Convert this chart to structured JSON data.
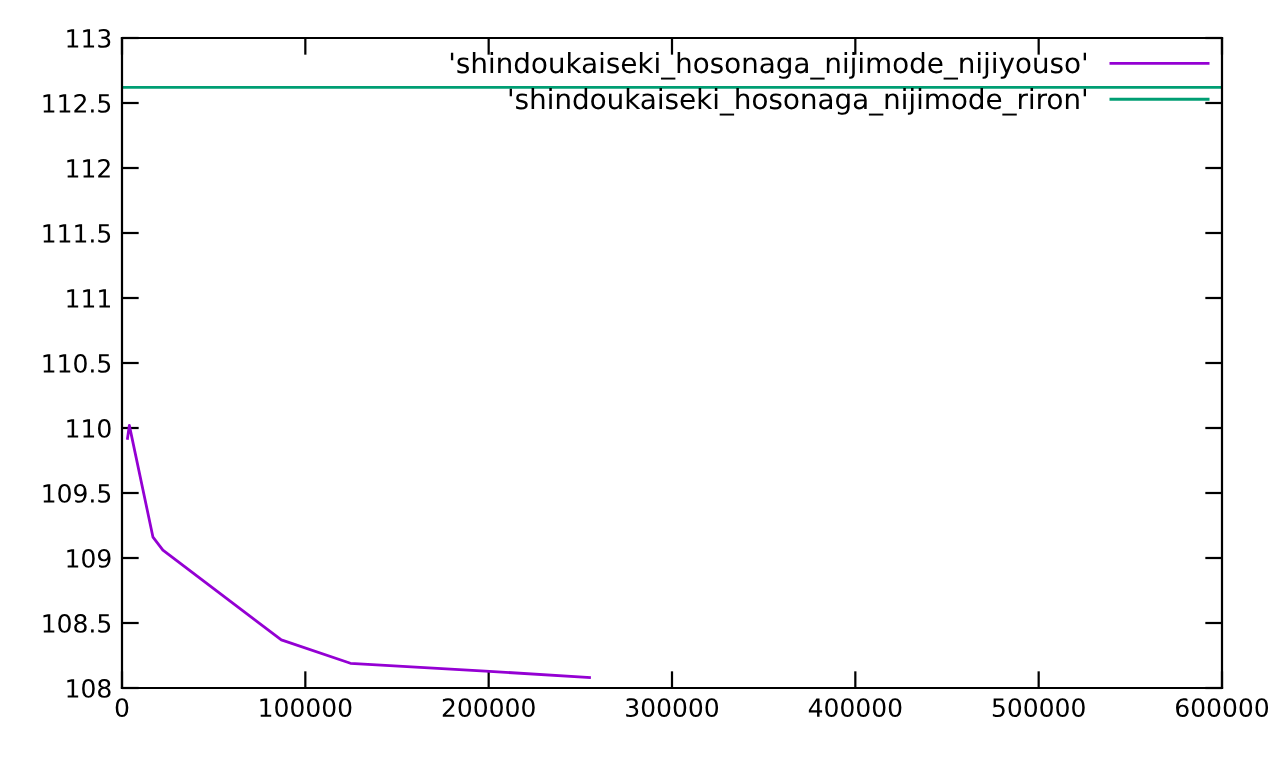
{
  "chart_data": {
    "type": "line",
    "series": [
      {
        "name": "'shindoukaiseki_hosonaga_nijimode_nijiyouso'",
        "color": "#9400d3",
        "x": [
          3000,
          4000,
          16900,
          22300,
          86900,
          124600,
          198200,
          255000
        ],
        "values": [
          109.92,
          110.02,
          109.16,
          109.06,
          108.37,
          108.19,
          108.13,
          108.08
        ]
      },
      {
        "name": "'shindoukaiseki_hosonaga_nijimode_riron'",
        "color": "#009e73",
        "x": [
          0,
          600000
        ],
        "values": [
          112.62,
          112.62
        ]
      }
    ],
    "xlim": [
      0,
      600000
    ],
    "xticks": [
      0,
      100000,
      200000,
      300000,
      400000,
      500000,
      600000
    ],
    "ylim": [
      108,
      113
    ],
    "yticks": [
      108,
      108.5,
      109,
      109.5,
      110,
      110.5,
      111,
      111.5,
      112,
      112.5,
      113
    ],
    "grid": false,
    "legend": "top right"
  }
}
